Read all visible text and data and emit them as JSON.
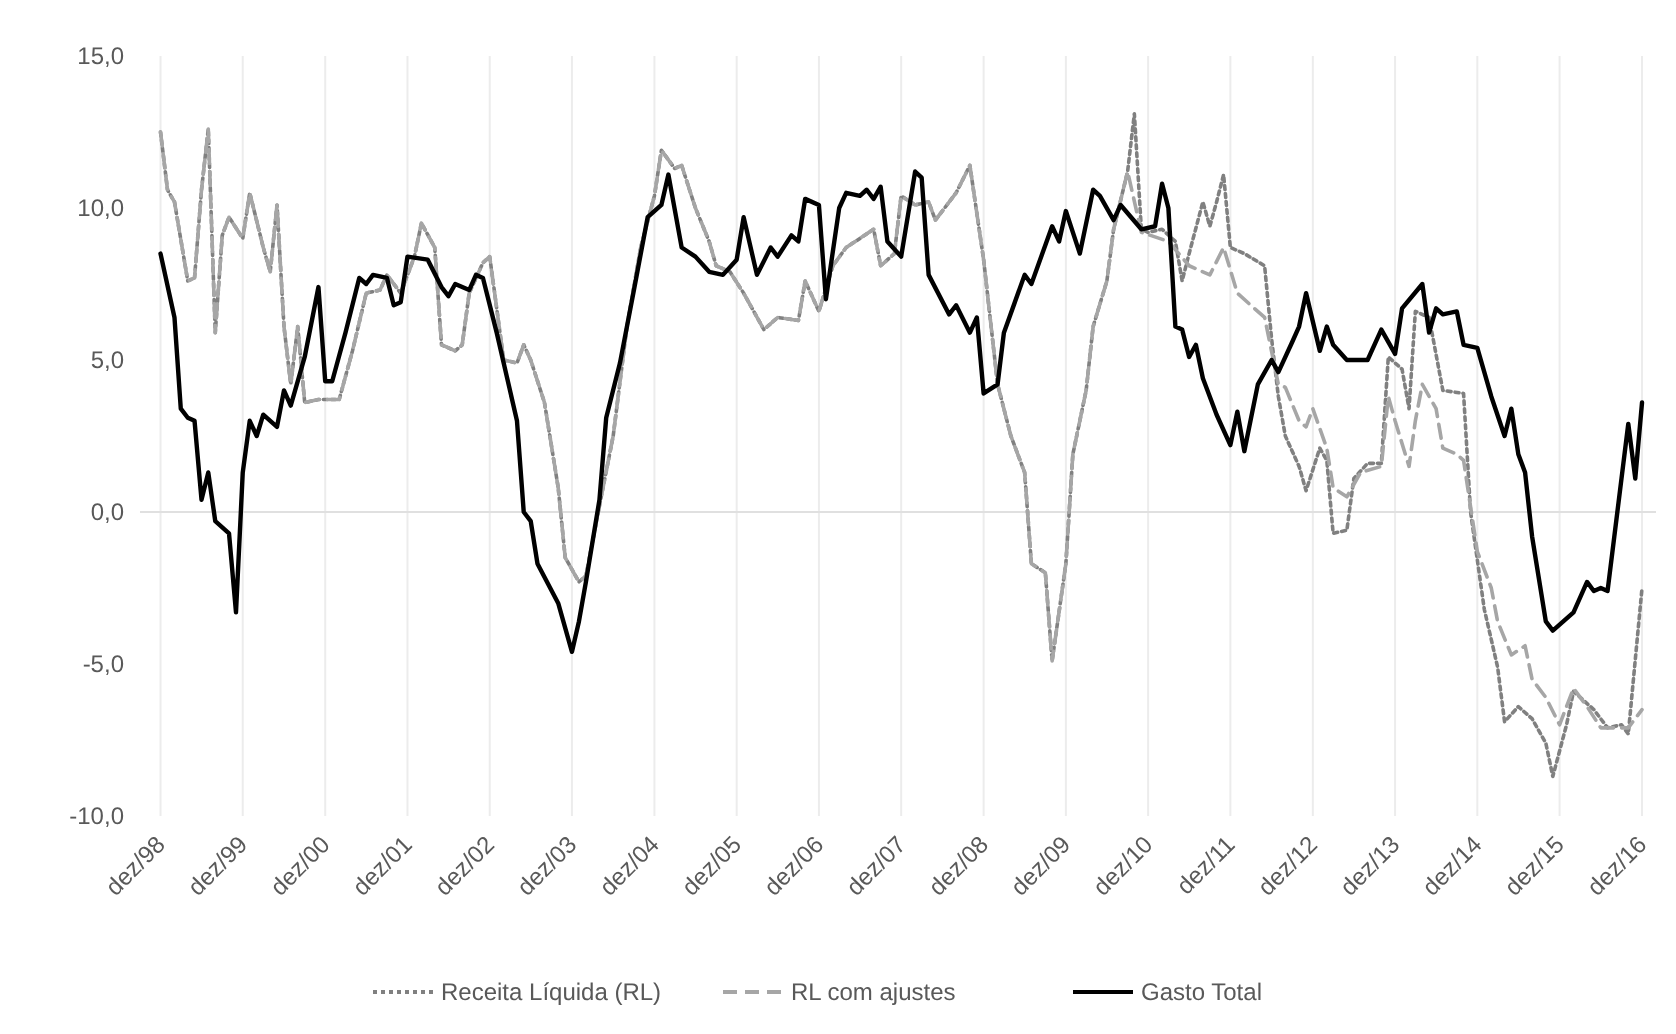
{
  "chart_data": {
    "type": "line",
    "xlim": [
      "1998-09",
      "2017-02"
    ],
    "ylim": [
      -10,
      15
    ],
    "xticks": [
      {
        "value": "1998-12",
        "label": "dez/98"
      },
      {
        "value": "1999-12",
        "label": "dez/99"
      },
      {
        "value": "2000-12",
        "label": "dez/00"
      },
      {
        "value": "2001-12",
        "label": "dez/01"
      },
      {
        "value": "2002-12",
        "label": "dez/02"
      },
      {
        "value": "2003-12",
        "label": "dez/03"
      },
      {
        "value": "2004-12",
        "label": "dez/04"
      },
      {
        "value": "2005-12",
        "label": "dez/05"
      },
      {
        "value": "2006-12",
        "label": "dez/06"
      },
      {
        "value": "2007-12",
        "label": "dez/07"
      },
      {
        "value": "2008-12",
        "label": "dez/08"
      },
      {
        "value": "2009-12",
        "label": "dez/09"
      },
      {
        "value": "2010-12",
        "label": "dez/10"
      },
      {
        "value": "2011-12",
        "label": "dez/11"
      },
      {
        "value": "2012-12",
        "label": "dez/12"
      },
      {
        "value": "2013-12",
        "label": "dez/13"
      },
      {
        "value": "2014-12",
        "label": "dez/14"
      },
      {
        "value": "2015-12",
        "label": "dez/15"
      },
      {
        "value": "2016-12",
        "label": "dez/16"
      }
    ],
    "yticks": [
      {
        "value": -10,
        "label": "-10,0"
      },
      {
        "value": -5,
        "label": "-5,0"
      },
      {
        "value": 0,
        "label": "0,0"
      },
      {
        "value": 5,
        "label": "5,0"
      },
      {
        "value": 10,
        "label": "10,0"
      },
      {
        "value": 15,
        "label": "15,0"
      }
    ],
    "grid": "x",
    "legend": "bottom",
    "marker": "none",
    "series": [
      {
        "name": "Receita Líquida (RL)",
        "color": "#808080",
        "line_style": "dotted",
        "x": [
          "1998-12",
          "1999-01",
          "1999-02",
          "1999-04",
          "1999-05",
          "1999-06",
          "1999-07",
          "1999-08",
          "1999-09",
          "1999-10",
          "1999-12",
          "2000-01",
          "2000-03",
          "2000-04",
          "2000-05",
          "2000-06",
          "2000-07",
          "2000-08",
          "2000-09",
          "2000-11",
          "2001-02",
          "2001-04",
          "2001-06",
          "2001-08",
          "2001-09",
          "2001-11",
          "2002-01",
          "2002-02",
          "2002-04",
          "2002-05",
          "2002-07",
          "2002-08",
          "2002-09",
          "2002-11",
          "2002-12",
          "2003-02",
          "2003-04",
          "2003-05",
          "2003-06",
          "2003-08",
          "2003-10",
          "2003-11",
          "2004-01",
          "2004-02",
          "2004-04",
          "2004-06",
          "2004-08",
          "2004-10",
          "2004-12",
          "2005-01",
          "2005-03",
          "2005-04",
          "2005-06",
          "2005-08",
          "2005-09",
          "2005-11",
          "2006-01",
          "2006-04",
          "2006-06",
          "2006-09",
          "2006-10",
          "2006-12",
          "2007-02",
          "2007-04",
          "2007-06",
          "2007-08",
          "2007-09",
          "2007-11",
          "2007-12",
          "2008-02",
          "2008-04",
          "2008-05",
          "2008-08",
          "2008-10",
          "2008-12",
          "2009-02",
          "2009-04",
          "2009-06",
          "2009-07",
          "2009-09",
          "2009-10",
          "2009-12",
          "2010-01",
          "2010-03",
          "2010-04",
          "2010-06",
          "2010-07",
          "2010-09",
          "2010-10",
          "2010-11",
          "2010-12",
          "2011-02",
          "2011-04",
          "2011-05",
          "2011-06",
          "2011-08",
          "2011-09",
          "2011-10",
          "2011-11",
          "2011-12",
          "2012-02",
          "2012-05",
          "2012-06",
          "2012-07",
          "2012-08",
          "2012-10",
          "2012-11",
          "2013-01",
          "2013-02",
          "2013-03",
          "2013-05",
          "2013-06",
          "2013-08",
          "2013-10",
          "2013-11",
          "2014-01",
          "2014-02",
          "2014-03",
          "2014-05",
          "2014-07",
          "2014-10",
          "2014-11",
          "2015-01",
          "2015-03",
          "2015-04",
          "2015-06",
          "2015-08",
          "2015-10",
          "2015-11",
          "2016-01",
          "2016-02",
          "2016-05",
          "2016-07",
          "2016-09",
          "2016-10",
          "2016-12"
        ],
        "values": [
          12.5,
          10.6,
          10.2,
          7.6,
          7.7,
          10.6,
          12.6,
          5.9,
          9.1,
          9.7,
          9.0,
          10.5,
          8.7,
          7.9,
          10.1,
          6.1,
          4.2,
          6.1,
          3.6,
          3.7,
          3.7,
          5.3,
          7.2,
          7.3,
          7.8,
          7.2,
          8.4,
          9.5,
          8.7,
          5.5,
          5.3,
          5.5,
          7.2,
          8.2,
          8.4,
          5.0,
          4.9,
          5.5,
          5.0,
          3.6,
          0.8,
          -1.5,
          -2.3,
          -2.1,
          0.2,
          2.5,
          6.1,
          8.7,
          10.4,
          11.9,
          11.3,
          11.4,
          10.0,
          8.9,
          8.1,
          7.9,
          7.2,
          6.0,
          6.4,
          6.3,
          7.6,
          6.6,
          8.1,
          8.7,
          9.0,
          9.3,
          8.1,
          8.5,
          10.4,
          10.1,
          10.2,
          9.6,
          10.5,
          11.4,
          8.3,
          4.2,
          2.5,
          1.3,
          -1.7,
          -2.0,
          -4.9,
          -1.7,
          1.9,
          4.0,
          6.1,
          7.6,
          9.3,
          11.2,
          13.1,
          9.3,
          9.2,
          9.3,
          8.9,
          7.6,
          8.5,
          10.2,
          9.4,
          10.2,
          11.1,
          8.7,
          8.5,
          8.1,
          5.7,
          3.8,
          2.5,
          1.5,
          0.7,
          2.1,
          1.7,
          -0.7,
          -0.6,
          1.1,
          1.6,
          1.6,
          5.1,
          4.7,
          3.4,
          6.6,
          6.4,
          4.0,
          3.9,
          0.0,
          -3.2,
          -5.1,
          -6.9,
          -6.4,
          -6.8,
          -7.6,
          -8.7,
          -7.0,
          -5.9,
          -6.5,
          -7.1,
          -7.0,
          -7.3,
          -2.5
        ]
      },
      {
        "name": "RL com ajustes",
        "color": "#a6a6a6",
        "line_style": "dashed",
        "x": [
          "1998-12",
          "1999-01",
          "1999-02",
          "1999-04",
          "1999-05",
          "1999-06",
          "1999-07",
          "1999-08",
          "1999-09",
          "1999-10",
          "1999-12",
          "2000-01",
          "2000-03",
          "2000-04",
          "2000-05",
          "2000-06",
          "2000-07",
          "2000-08",
          "2000-09",
          "2000-11",
          "2001-02",
          "2001-04",
          "2001-06",
          "2001-08",
          "2001-09",
          "2001-11",
          "2002-01",
          "2002-02",
          "2002-04",
          "2002-05",
          "2002-07",
          "2002-08",
          "2002-09",
          "2002-11",
          "2002-12",
          "2003-02",
          "2003-04",
          "2003-05",
          "2003-06",
          "2003-08",
          "2003-10",
          "2003-11",
          "2004-01",
          "2004-02",
          "2004-04",
          "2004-06",
          "2004-08",
          "2004-10",
          "2004-12",
          "2005-01",
          "2005-03",
          "2005-04",
          "2005-06",
          "2005-08",
          "2005-09",
          "2005-11",
          "2006-01",
          "2006-04",
          "2006-06",
          "2006-09",
          "2006-10",
          "2006-12",
          "2007-02",
          "2007-04",
          "2007-06",
          "2007-08",
          "2007-09",
          "2007-11",
          "2007-12",
          "2008-02",
          "2008-04",
          "2008-05",
          "2008-08",
          "2008-10",
          "2008-12",
          "2009-02",
          "2009-04",
          "2009-06",
          "2009-07",
          "2009-09",
          "2009-10",
          "2009-12",
          "2010-01",
          "2010-03",
          "2010-04",
          "2010-06",
          "2010-07",
          "2010-09",
          "2010-11",
          "2011-03",
          "2011-06",
          "2011-09",
          "2011-11",
          "2012-01",
          "2012-03",
          "2012-05",
          "2012-07",
          "2012-08",
          "2012-10",
          "2012-11",
          "2012-12",
          "2013-02",
          "2013-03",
          "2013-05",
          "2013-07",
          "2013-10",
          "2013-11",
          "2013-12",
          "2014-02",
          "2014-03",
          "2014-04",
          "2014-06",
          "2014-07",
          "2014-09",
          "2014-10",
          "2014-12",
          "2015-02",
          "2015-03",
          "2015-05",
          "2015-07",
          "2015-08",
          "2015-10",
          "2015-12",
          "2016-02",
          "2016-04",
          "2016-06",
          "2016-08",
          "2016-10",
          "2016-12"
        ],
        "values": [
          12.5,
          10.6,
          10.2,
          7.6,
          7.7,
          10.6,
          12.6,
          5.9,
          9.1,
          9.7,
          9.0,
          10.5,
          8.7,
          7.9,
          10.1,
          6.1,
          4.2,
          6.1,
          3.6,
          3.7,
          3.7,
          5.3,
          7.2,
          7.3,
          7.8,
          7.2,
          8.4,
          9.5,
          8.7,
          5.5,
          5.3,
          5.5,
          7.2,
          8.2,
          8.4,
          5.0,
          4.9,
          5.5,
          5.0,
          3.6,
          0.8,
          -1.5,
          -2.3,
          -2.1,
          0.2,
          2.5,
          6.1,
          8.7,
          10.4,
          11.9,
          11.3,
          11.4,
          10.0,
          8.9,
          8.1,
          7.9,
          7.2,
          6.0,
          6.4,
          6.3,
          7.6,
          6.6,
          8.1,
          8.7,
          9.0,
          9.3,
          8.1,
          8.5,
          10.4,
          10.1,
          10.2,
          9.6,
          10.5,
          11.4,
          8.3,
          4.2,
          2.5,
          1.3,
          -1.7,
          -2.0,
          -4.9,
          -1.7,
          1.9,
          4.0,
          6.1,
          7.6,
          9.3,
          11.2,
          9.2,
          8.9,
          8.1,
          7.8,
          8.7,
          7.2,
          6.8,
          6.4,
          4.2,
          4.1,
          3.0,
          2.8,
          3.4,
          2.1,
          0.8,
          0.5,
          1.3,
          1.5,
          3.8,
          3.0,
          1.5,
          3.0,
          4.2,
          3.4,
          2.1,
          1.9,
          1.7,
          -1.3,
          -2.5,
          -3.6,
          -4.7,
          -4.4,
          -5.5,
          -6.1,
          -7.0,
          -5.8,
          -6.4,
          -7.1,
          -7.1,
          -7.1,
          -6.5
        ]
      },
      {
        "name": "Gasto Total",
        "color": "#000000",
        "line_style": "solid",
        "x": [
          "1998-12",
          "1999-02",
          "1999-03",
          "1999-04",
          "1999-05",
          "1999-06",
          "1999-07",
          "1999-08",
          "1999-10",
          "1999-11",
          "1999-12",
          "2000-01",
          "2000-02",
          "2000-03",
          "2000-05",
          "2000-06",
          "2000-07",
          "2000-09",
          "2000-11",
          "2000-12",
          "2001-01",
          "2001-03",
          "2001-05",
          "2001-06",
          "2001-07",
          "2001-09",
          "2001-10",
          "2001-11",
          "2001-12",
          "2002-03",
          "2002-05",
          "2002-06",
          "2002-07",
          "2002-09",
          "2002-10",
          "2002-11",
          "2003-01",
          "2003-02",
          "2003-04",
          "2003-05",
          "2003-06",
          "2003-07",
          "2003-10",
          "2003-12",
          "2004-01",
          "2004-02",
          "2004-04",
          "2004-05",
          "2004-07",
          "2004-09",
          "2004-11",
          "2005-01",
          "2005-02",
          "2005-04",
          "2005-06",
          "2005-08",
          "2005-10",
          "2005-12",
          "2006-01",
          "2006-03",
          "2006-05",
          "2006-06",
          "2006-08",
          "2006-09",
          "2006-10",
          "2006-12",
          "2007-01",
          "2007-03",
          "2007-04",
          "2007-06",
          "2007-07",
          "2007-08",
          "2007-09",
          "2007-10",
          "2007-12",
          "2008-02",
          "2008-03",
          "2008-04",
          "2008-07",
          "2008-08",
          "2008-10",
          "2008-11",
          "2008-12",
          "2009-02",
          "2009-03",
          "2009-06",
          "2009-07",
          "2009-10",
          "2009-11",
          "2009-12",
          "2010-02",
          "2010-04",
          "2010-05",
          "2010-07",
          "2010-08",
          "2010-11",
          "2011-01",
          "2011-02",
          "2011-03",
          "2011-04",
          "2011-05",
          "2011-06",
          "2011-07",
          "2011-08",
          "2011-10",
          "2011-12",
          "2012-01",
          "2012-02",
          "2012-04",
          "2012-06",
          "2012-07",
          "2012-09",
          "2012-10",
          "2012-11",
          "2013-01",
          "2013-02",
          "2013-03",
          "2013-05",
          "2013-08",
          "2013-10",
          "2013-12",
          "2014-01",
          "2014-04",
          "2014-05",
          "2014-06",
          "2014-07",
          "2014-09",
          "2014-10",
          "2014-12",
          "2015-02",
          "2015-04",
          "2015-05",
          "2015-06",
          "2015-07",
          "2015-08",
          "2015-10",
          "2015-11",
          "2016-02",
          "2016-04",
          "2016-05",
          "2016-06",
          "2016-07",
          "2016-10",
          "2016-11",
          "2016-12"
        ],
        "values": [
          8.5,
          6.4,
          3.4,
          3.1,
          3.0,
          0.4,
          1.3,
          -0.3,
          -0.7,
          -3.3,
          1.3,
          3.0,
          2.5,
          3.2,
          2.8,
          4.0,
          3.5,
          5.1,
          7.4,
          4.3,
          4.3,
          5.9,
          7.7,
          7.5,
          7.8,
          7.7,
          6.8,
          6.9,
          8.4,
          8.3,
          7.4,
          7.1,
          7.5,
          7.3,
          7.8,
          7.7,
          5.9,
          4.9,
          3.0,
          0.0,
          -0.3,
          -1.7,
          -3.0,
          -4.6,
          -3.6,
          -2.3,
          0.4,
          3.1,
          4.9,
          7.3,
          9.7,
          10.1,
          11.1,
          8.7,
          8.4,
          7.9,
          7.8,
          8.3,
          9.7,
          7.8,
          8.7,
          8.4,
          9.1,
          8.9,
          10.3,
          10.1,
          7.0,
          10.0,
          10.5,
          10.4,
          10.6,
          10.3,
          10.7,
          8.9,
          8.4,
          11.2,
          11.0,
          7.8,
          6.5,
          6.8,
          5.9,
          6.4,
          3.9,
          4.2,
          5.9,
          7.8,
          7.5,
          9.4,
          8.9,
          9.9,
          8.5,
          10.6,
          10.4,
          9.6,
          10.1,
          9.3,
          9.4,
          10.8,
          10.0,
          6.1,
          6.0,
          5.1,
          5.5,
          4.4,
          3.2,
          2.2,
          3.3,
          2.0,
          4.2,
          5.0,
          4.6,
          5.6,
          6.1,
          7.2,
          5.3,
          6.1,
          5.5,
          5.0,
          5.0,
          6.0,
          5.2,
          6.7,
          7.5,
          5.9,
          6.7,
          6.5,
          6.6,
          5.5,
          5.4,
          3.8,
          2.5,
          3.4,
          1.9,
          1.3,
          -0.8,
          -3.6,
          -3.9,
          -3.3,
          -2.3,
          -2.6,
          -2.5,
          -2.6,
          2.9,
          1.1,
          3.6
        ]
      }
    ]
  }
}
